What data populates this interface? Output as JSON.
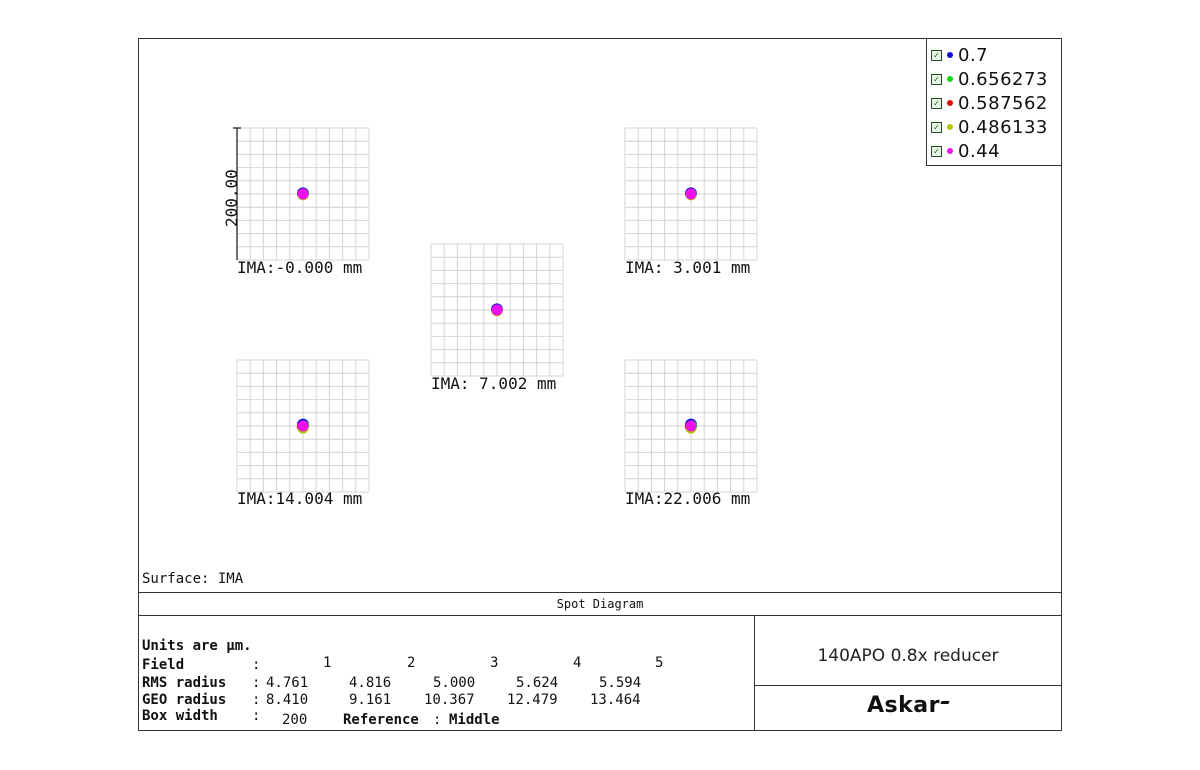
{
  "legend": [
    {
      "label": "0.7",
      "color": "#1010dd"
    },
    {
      "label": "0.656273",
      "color": "#10dd10"
    },
    {
      "label": "0.587562",
      "color": "#dd1010"
    },
    {
      "label": "0.486133",
      "color": "#b8c400"
    },
    {
      "label": "0.44",
      "color": "#ee10ee"
    }
  ],
  "scale_label": "200.00",
  "spots": [
    {
      "label": "IMA:-0.000 mm"
    },
    {
      "label": "IMA: 3.001 mm"
    },
    {
      "label": "IMA: 7.002 mm"
    },
    {
      "label": "IMA:14.004 mm"
    },
    {
      "label": "IMA:22.006 mm"
    }
  ],
  "surface_label": "Surface: IMA",
  "title": "Spot Diagram",
  "info": {
    "units": "Units are µm.",
    "field_label": "Field",
    "fields": [
      "1",
      "2",
      "3",
      "4",
      "5"
    ],
    "rms_label": "RMS radius",
    "rms": [
      "4.761",
      "4.816",
      "5.000",
      "5.624",
      "5.594"
    ],
    "geo_label": "GEO radius",
    "geo": [
      "8.410",
      "9.161",
      "10.367",
      "12.479",
      "13.464"
    ],
    "box_label": "Box width",
    "box_value": "200",
    "reference_label": "Reference",
    "reference_value": "Middle"
  },
  "project_title": "140APO 0.8x reducer",
  "brand": "Askar"
}
